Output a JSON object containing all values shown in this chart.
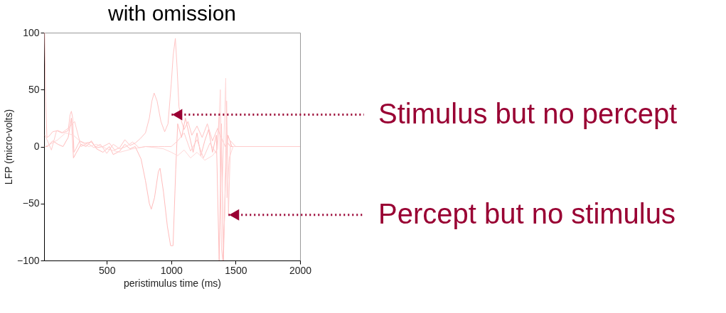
{
  "chart_data": {
    "type": "line",
    "title": "with omission",
    "xlabel": "peristimulus time (ms)",
    "ylabel": "LFP (micro-volts)",
    "xlim": [
      13,
      2000
    ],
    "xticks": [
      500,
      1000,
      1500,
      2000
    ],
    "ylim": [
      -100,
      100
    ],
    "yticks": [
      -100,
      -50,
      0,
      50,
      100
    ],
    "grid": false,
    "legend": false,
    "line_style": "solid",
    "marker": "none",
    "series": [
      {
        "color": "#ffc4c4",
        "x": [
          18,
          25,
          35,
          50,
          80,
          120,
          160,
          200,
          215,
          225,
          235,
          245,
          260,
          290,
          330,
          380,
          420,
          470,
          520,
          560,
          600,
          640,
          680,
          720,
          760,
          800,
          830,
          850,
          867,
          890,
          920,
          949,
          975,
          1000,
          1015,
          1032,
          1045,
          1060,
          1080,
          1100,
          1130,
          1160,
          1200,
          1240,
          1280,
          1320,
          1360,
          1380,
          1400,
          1420,
          1440,
          1460,
          1500,
          1600,
          2000
        ],
        "values": [
          100,
          40,
          8,
          9,
          13,
          14,
          12,
          14,
          28,
          31,
          25,
          -5,
          -2,
          5,
          3,
          4,
          -1,
          0,
          3,
          -3,
          -1,
          6,
          1,
          3,
          7,
          12,
          25,
          40,
          47,
          40,
          22,
          13,
          20,
          55,
          80,
          95,
          70,
          35,
          22,
          15,
          22,
          10,
          18,
          8,
          20,
          5,
          16,
          10,
          5,
          0,
          3,
          0,
          0,
          0,
          0
        ]
      },
      {
        "color": "#ffbcbc",
        "x": [
          20,
          40,
          80,
          120,
          160,
          200,
          225,
          241,
          260,
          300,
          340,
          380,
          420,
          470,
          520,
          550,
          600,
          640,
          680,
          720,
          766,
          800,
          830,
          845,
          870,
          900,
          913,
          940,
          970,
          995,
          1014,
          1035,
          1050,
          1080,
          1110,
          1140,
          1170,
          1200,
          1230,
          1260,
          1290,
          1320,
          1350,
          1372,
          1390,
          1405,
          1420,
          1440,
          1470,
          1500,
          2000
        ],
        "values": [
          0,
          0,
          5,
          2,
          0,
          8,
          25,
          -10,
          -6,
          2,
          0,
          5,
          -2,
          -5,
          0,
          -7,
          -4,
          2,
          -2,
          0,
          -11,
          -30,
          -50,
          -55,
          -45,
          -22,
          -19,
          -40,
          -70,
          -87,
          -87,
          -20,
          20,
          8,
          25,
          10,
          -5,
          12,
          -8,
          5,
          15,
          -5,
          10,
          -100,
          20,
          -100,
          -30,
          10,
          0,
          0,
          0
        ]
      },
      {
        "color": "#ffd8d8",
        "x": [
          20,
          60,
          120,
          180,
          240,
          300,
          360,
          420,
          500,
          600,
          700,
          800,
          880,
          940,
          1000,
          1050,
          1100,
          1150,
          1200,
          1260,
          1320,
          1360,
          1381,
          1395,
          1410,
          1423,
          1432,
          1450,
          1480,
          1520,
          2000
        ],
        "values": [
          0,
          2,
          6,
          12,
          10,
          4,
          0,
          2,
          -2,
          -5,
          -2,
          0,
          -1,
          -2,
          -5,
          -8,
          -3,
          -10,
          -5,
          -12,
          -8,
          -2,
          50,
          -40,
          10,
          60,
          -45,
          -10,
          0,
          0,
          0
        ]
      },
      {
        "color": "#ffcccc",
        "x": [
          20,
          70,
          110,
          150,
          200,
          250,
          300,
          350,
          400,
          450,
          500,
          550,
          600,
          650,
          700,
          750,
          800,
          850,
          900,
          950,
          1000,
          1050,
          1100,
          1150,
          1200,
          1250,
          1300,
          1350,
          1375,
          1390,
          1400,
          1415,
          1430,
          1444,
          1460,
          1500,
          2000
        ],
        "values": [
          10,
          -3,
          14,
          12,
          16,
          22,
          0,
          3,
          -1,
          2,
          -6,
          2,
          -2,
          0,
          4,
          -1,
          0,
          0,
          0,
          0,
          0,
          5,
          12,
          -4,
          6,
          -10,
          3,
          -6,
          30,
          -90,
          -100,
          -60,
          40,
          -60,
          5,
          0,
          0
        ]
      }
    ],
    "annotations": [
      {
        "text": "Stimulus but no percept",
        "x": 1003,
        "y": 28
      },
      {
        "text": "Percept but no stimulus",
        "x": 1444,
        "y": -60
      }
    ]
  }
}
